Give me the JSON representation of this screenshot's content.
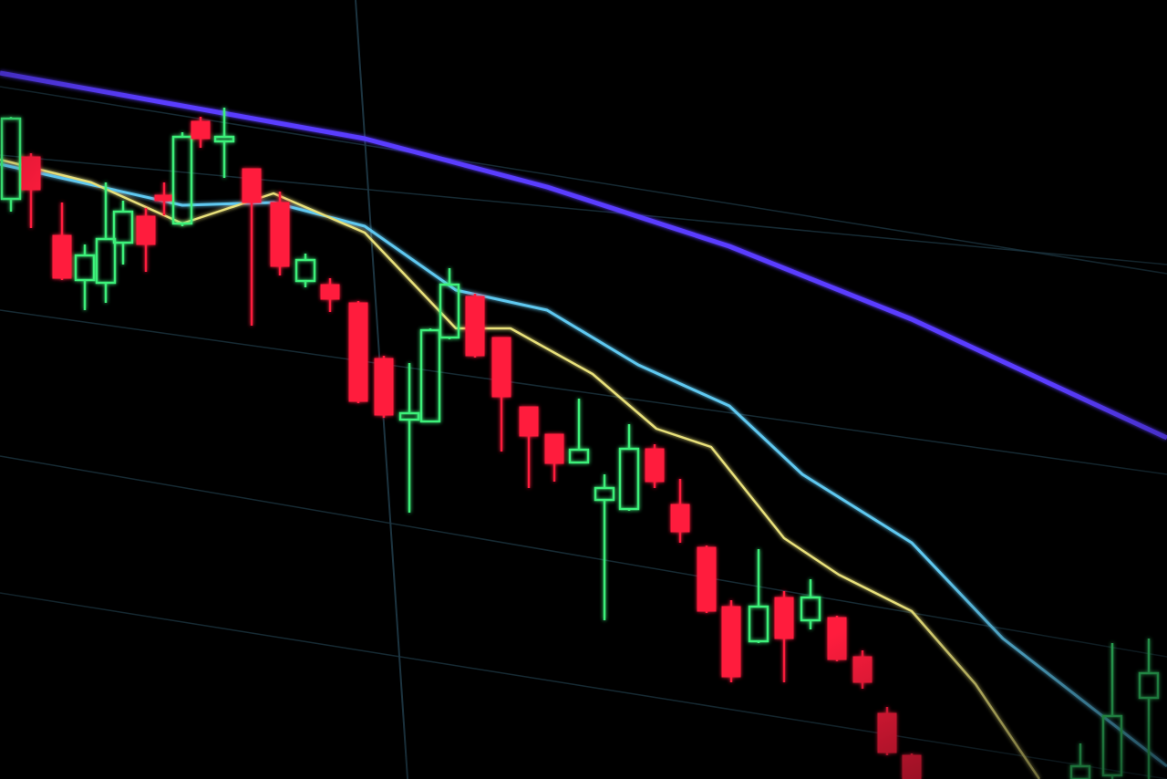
{
  "photo": {
    "subject": "candlestick-chart-on-screen",
    "colors": {
      "background": "#000000",
      "bullish": "#3df07a",
      "bearish": "#ff1f3d",
      "moving_average_slow": "#5a3cff",
      "moving_average_mid": "#5fc8f0",
      "moving_average_fast": "#e8e07a",
      "grid": "#1c3440"
    },
    "trend": "down"
  }
}
